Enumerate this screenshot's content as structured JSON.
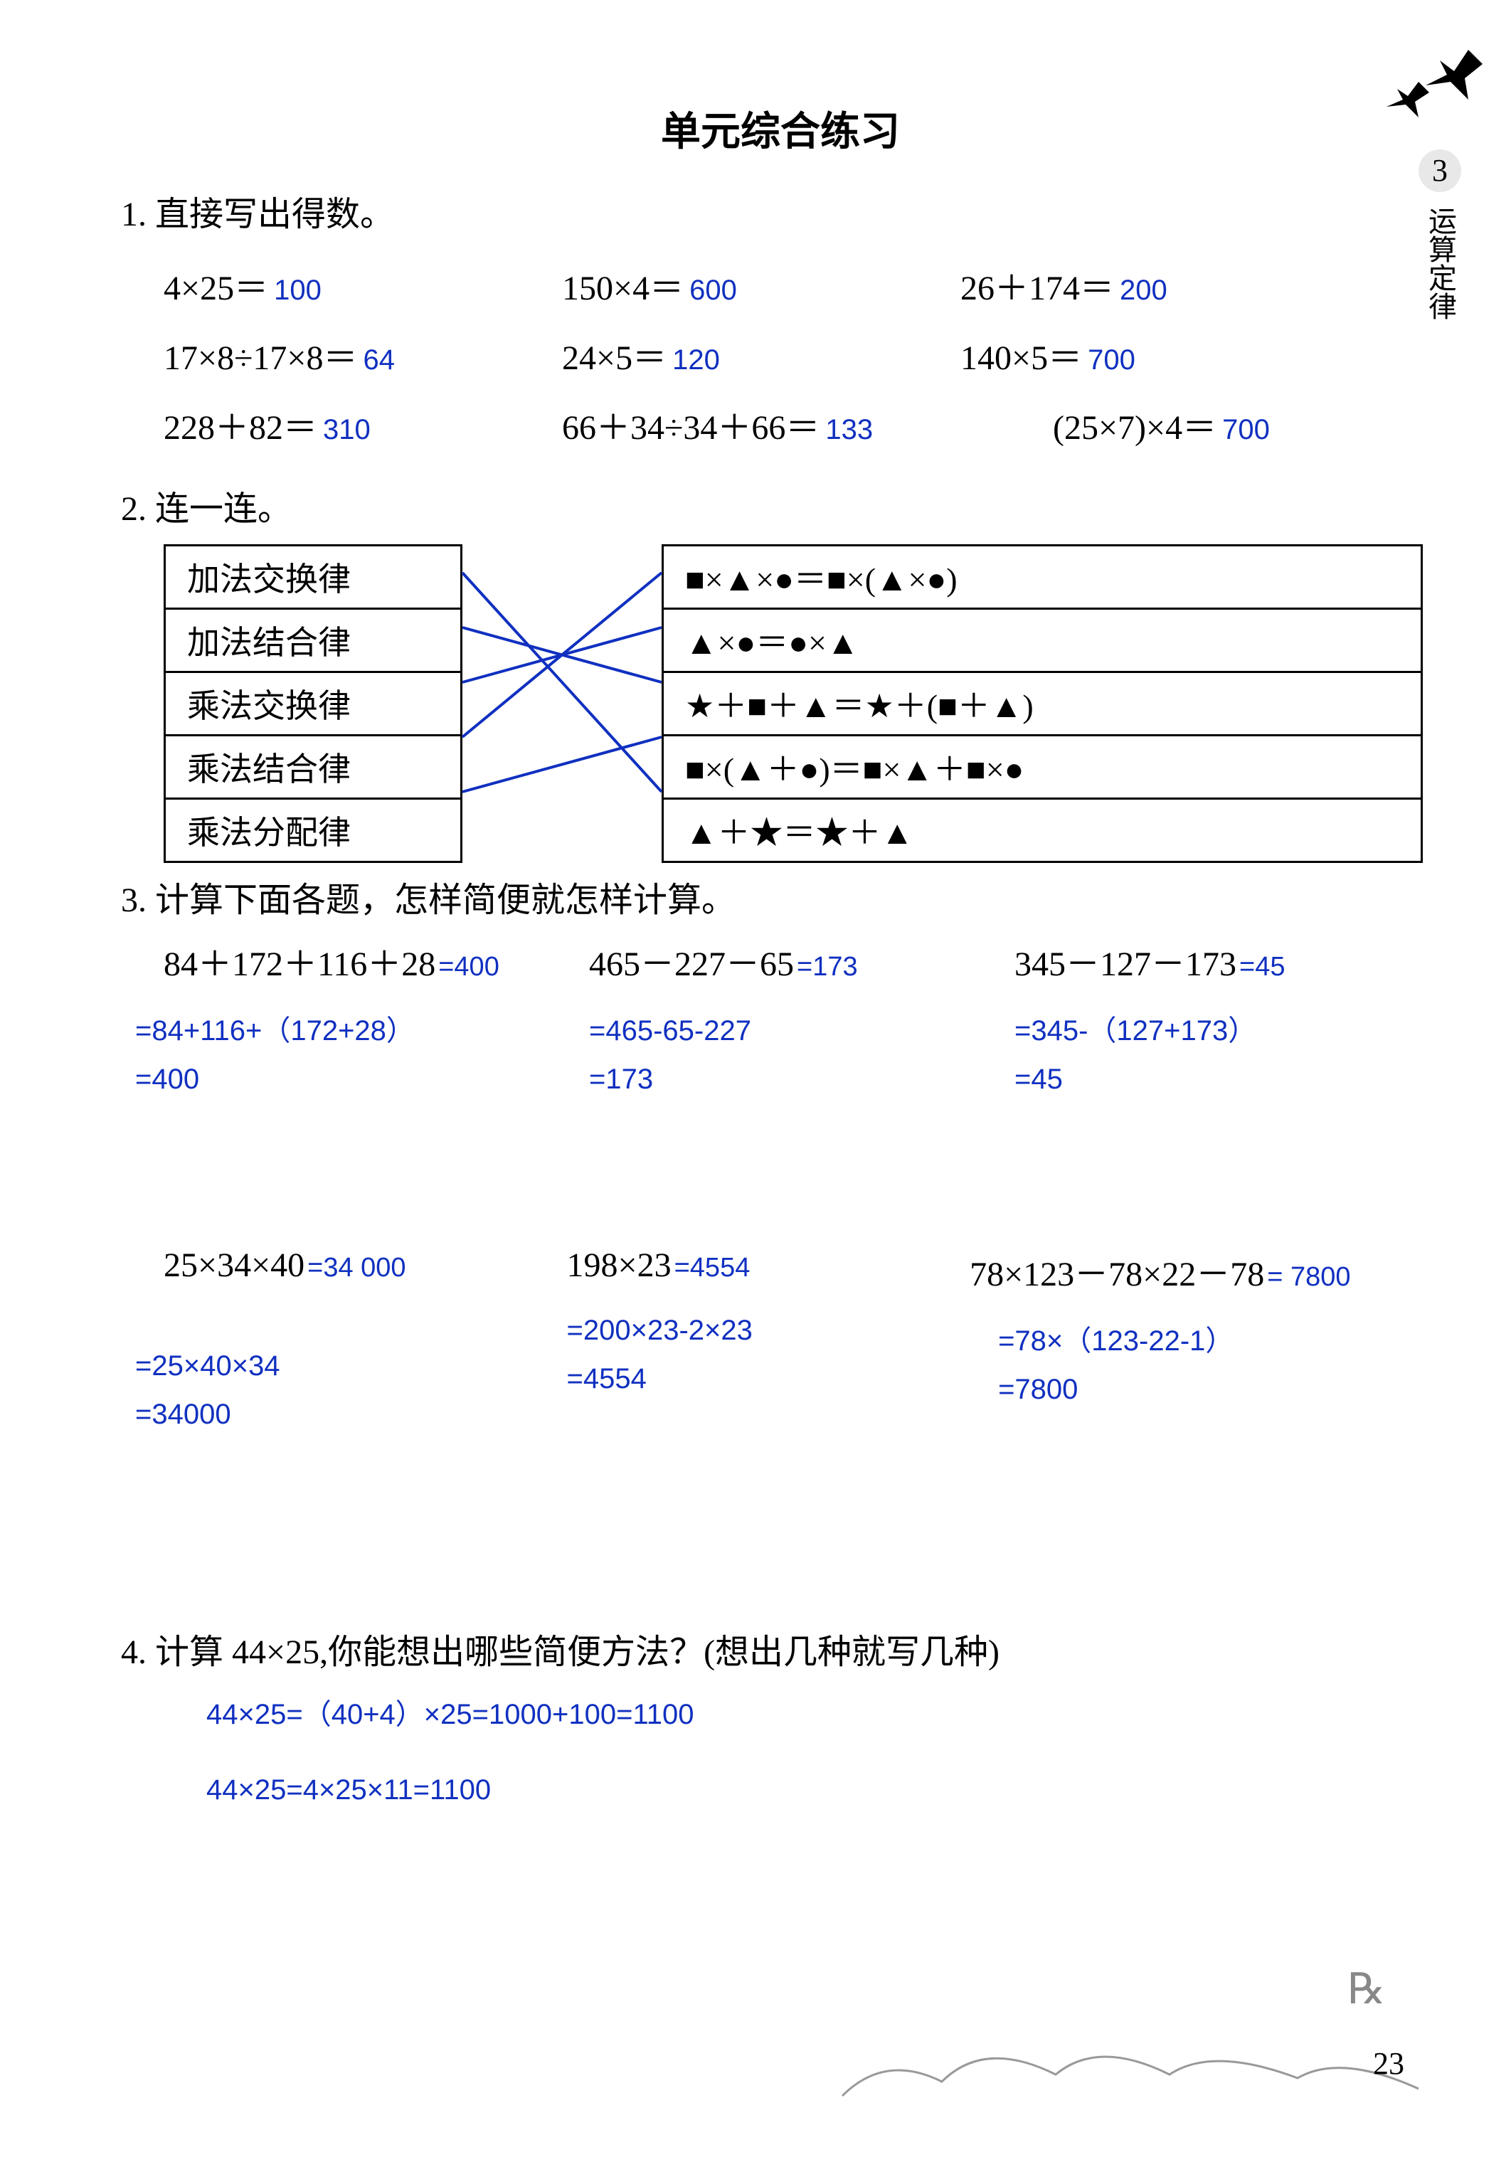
{
  "title": "单元综合练习",
  "side": {
    "num": "3",
    "label": "运算定律"
  },
  "q1": {
    "prompt": "1. 直接写出得数。",
    "items": [
      {
        "expr": "4×25＝",
        "ans": "100"
      },
      {
        "expr": "150×4＝",
        "ans": "600"
      },
      {
        "expr": "26＋174＝",
        "ans": "200"
      },
      {
        "expr": "17×8÷17×8＝",
        "ans": "64"
      },
      {
        "expr": "24×5＝",
        "ans": "120"
      },
      {
        "expr": "140×5＝",
        "ans": "700"
      },
      {
        "expr": "228＋82＝",
        "ans": "310"
      },
      {
        "expr": "66＋34÷34＋66＝",
        "ans": "133"
      },
      {
        "expr": "(25×7)×4＝",
        "ans": "700"
      }
    ]
  },
  "q2": {
    "prompt": "2. 连一连。",
    "left": [
      "加法交换律",
      "加法结合律",
      "乘法交换律",
      "乘法结合律",
      "乘法分配律"
    ],
    "right": [
      "■×▲×●＝■×(▲×●)",
      "▲×●＝●×▲",
      "★＋■＋▲＝★＋(■＋▲)",
      "■×(▲＋●)＝■×▲＋■×●",
      "▲＋★＝★＋▲"
    ],
    "edges": [
      [
        0,
        4
      ],
      [
        1,
        2
      ],
      [
        2,
        1
      ],
      [
        3,
        0
      ],
      [
        4,
        3
      ]
    ],
    "line_color": "#1030c0"
  },
  "q3": {
    "prompt": "3. 计算下面各题，怎样简便就怎样计算。",
    "row1": [
      {
        "expr": "84＋172＋116＋28",
        "ans": "=400",
        "work": [
          "=84+116+（172+28）",
          "=400"
        ]
      },
      {
        "expr": "465－227－65",
        "ans": "=173",
        "work": [
          "=465-65-227",
          "=173"
        ]
      },
      {
        "expr": "345－127－173",
        "ans": "=45",
        "work": [
          "=345-（127+173）",
          "=45"
        ]
      }
    ],
    "row2": [
      {
        "expr": "25×34×40",
        "ans": "=34 000",
        "work": [
          "=25×40×34",
          "=34000"
        ]
      },
      {
        "expr": "198×23",
        "ans": "=4554",
        "work": [
          "=200×23-2×23",
          "=4554"
        ]
      },
      {
        "expr": "78×123－78×22－78",
        "ans": "= 7800",
        "work": [
          "=78×（123-22-1）",
          "=7800"
        ]
      }
    ]
  },
  "q4": {
    "prompt": "4. 计算 44×25,你能想出哪些简便方法？(想出几种就写几种)",
    "work": [
      "44×25=（40+4）×25=1000+100=1100",
      "44×25=4×25×11=1100"
    ]
  },
  "page_number": "23",
  "colors": {
    "answer": "#1030c0",
    "text": "#000000",
    "background": "#ffffff"
  }
}
